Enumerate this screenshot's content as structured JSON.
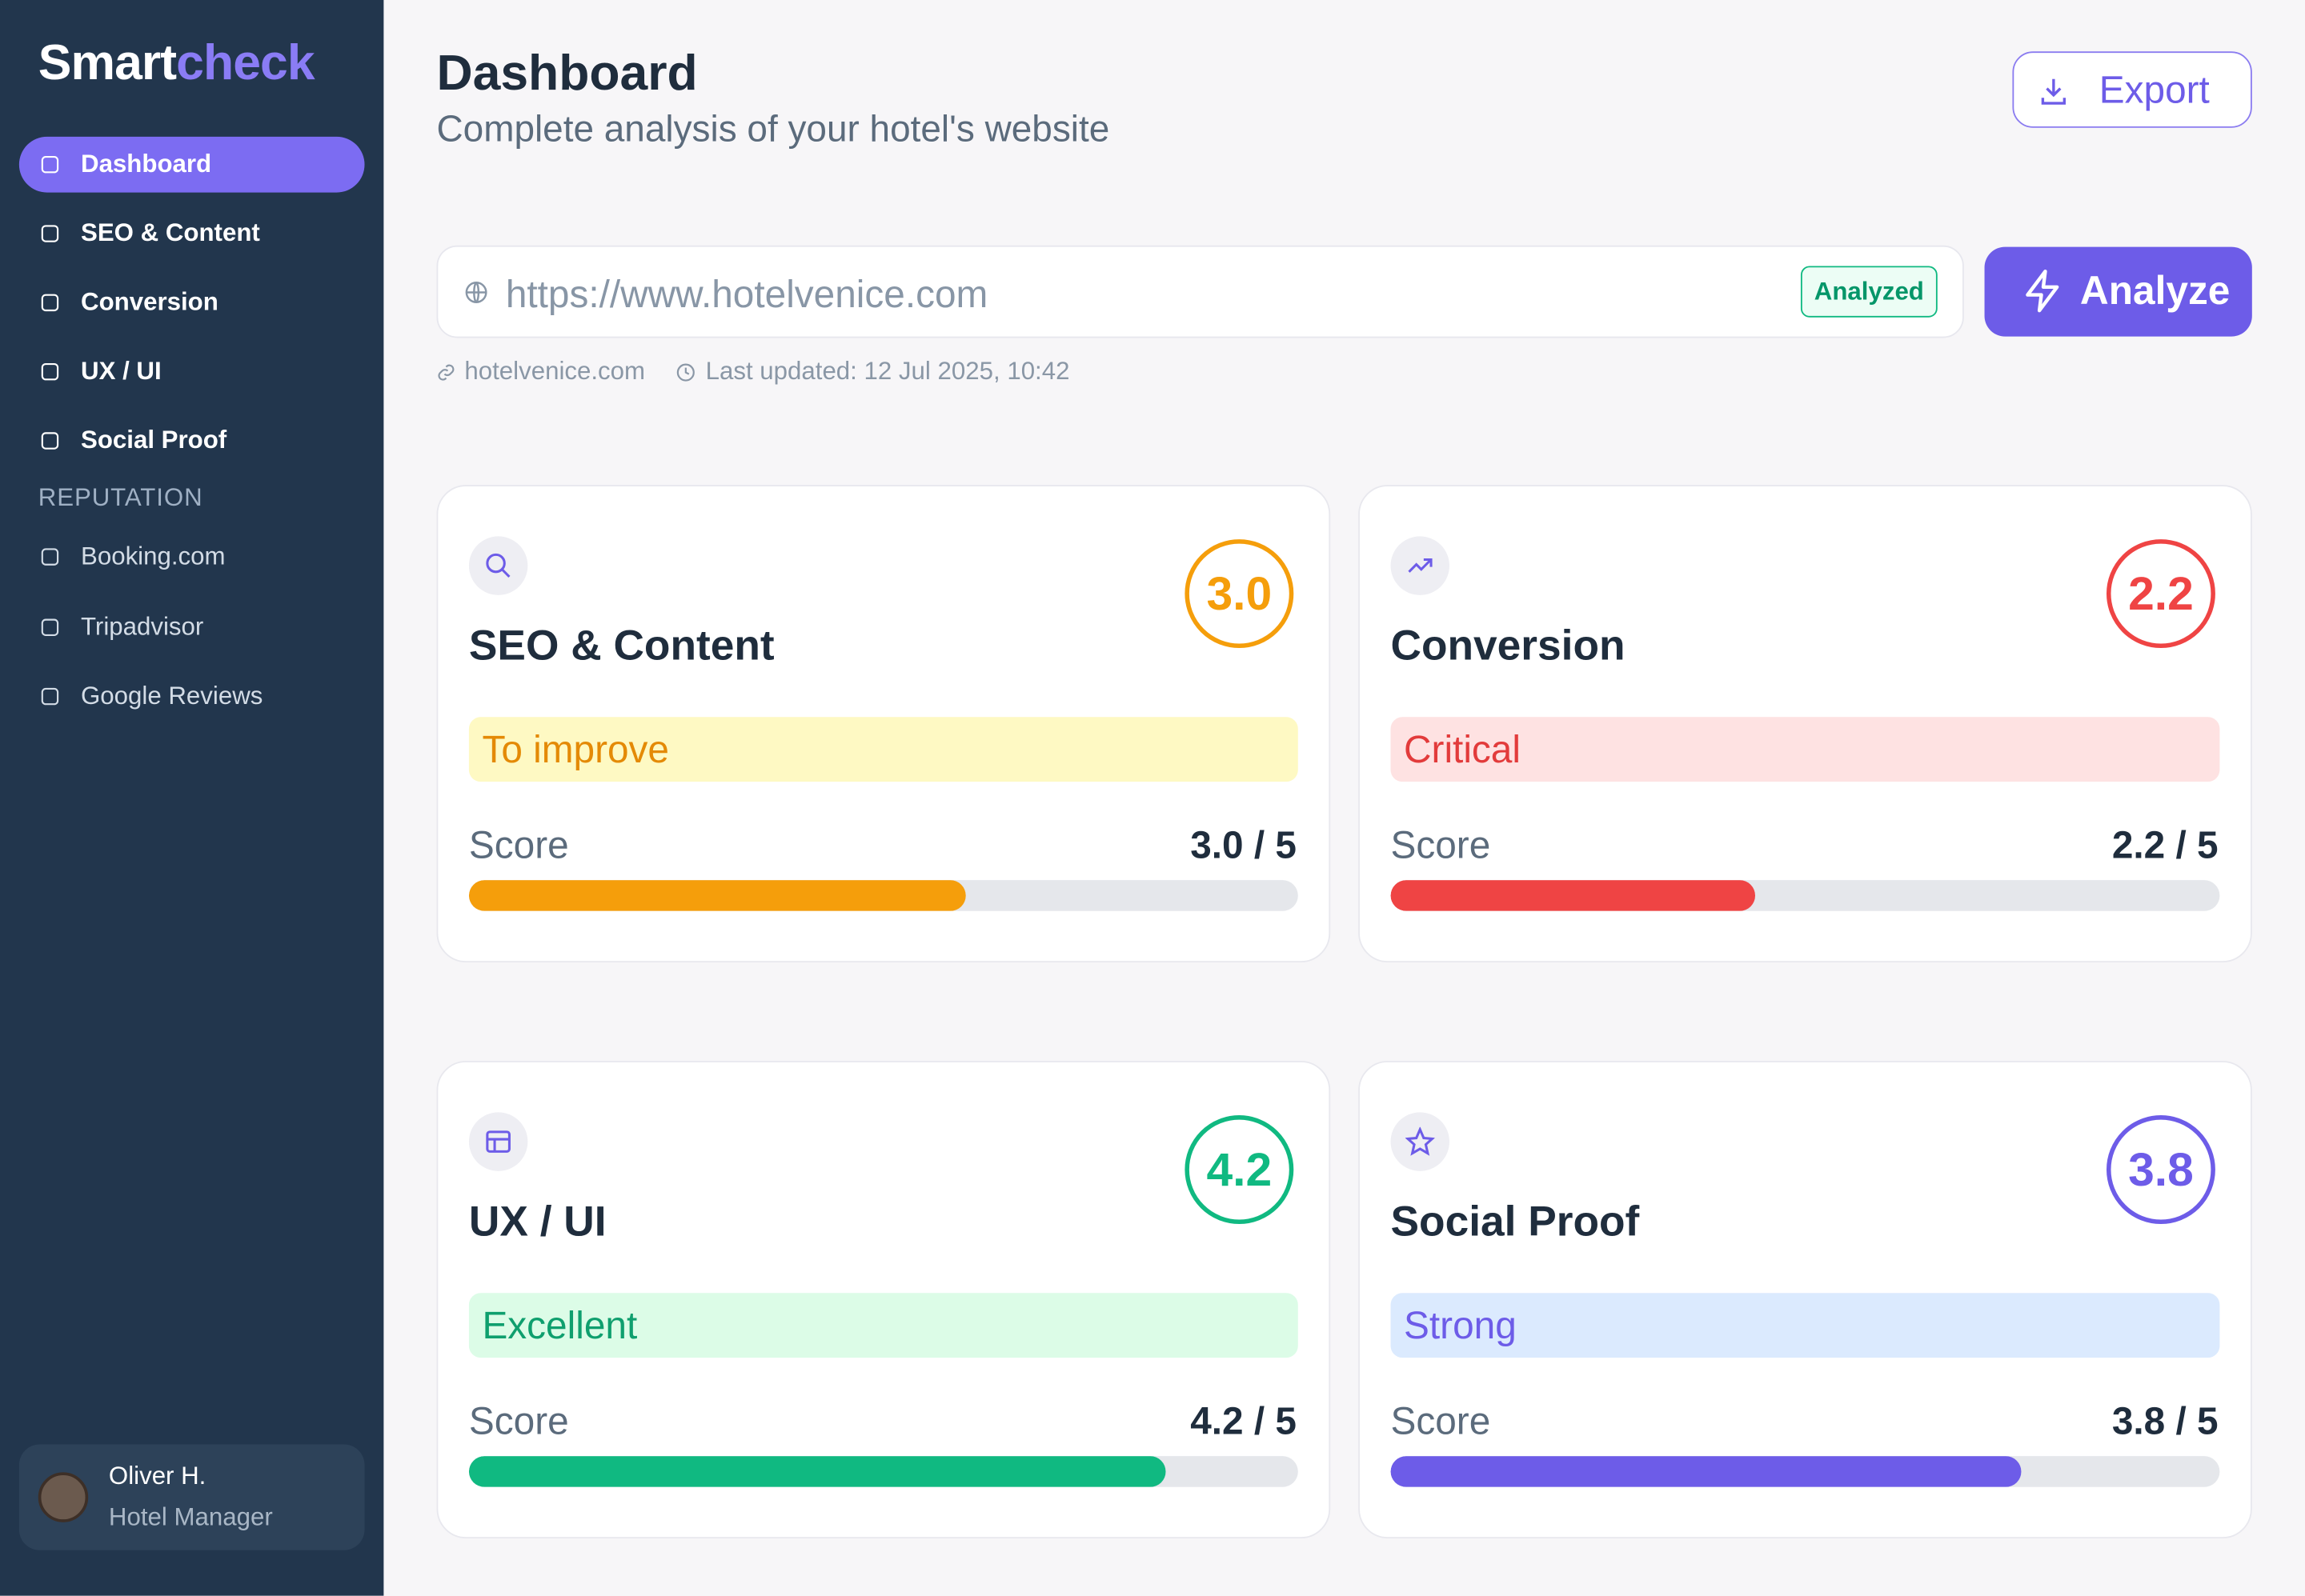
{
  "sidebar": {
    "brand": {
      "part1": "Smart",
      "part2": "check"
    },
    "nav": [
      "Dashboard",
      "SEO & Content",
      "Conversion",
      "UX / UI",
      "Social Proof"
    ],
    "section": "REPUTATION",
    "reputation": [
      "Booking.com",
      "Tripadvisor",
      "Google Reviews"
    ],
    "user": {
      "name": "Oliver H.",
      "role": "Hotel Manager"
    }
  },
  "header": {
    "title": "Dashboard",
    "subtitle": "Complete analysis of your hotel's website",
    "export": "Export"
  },
  "analysis": {
    "url": "https://www.hotelvenice.com",
    "badge": "Analyzed",
    "button": "Analyze",
    "domain": "hotelvenice.com",
    "last_updated": "Last updated: 12 Jul 2025, 10:42"
  },
  "max_score": 5,
  "cards": [
    {
      "title": "SEO & Content",
      "score": {
        "value": 3.0,
        "label": "3.0"
      },
      "status": "To improve",
      "score_label": "Score",
      "score_text": "3.0 / 5",
      "color": "#f59e0b",
      "status_bg": "#fef9c3",
      "status_color": "#e48a06"
    },
    {
      "title": "Conversion",
      "score": {
        "value": 2.2,
        "label": "2.2"
      },
      "status": "Critical",
      "score_label": "Score",
      "score_text": "2.2 / 5",
      "color": "#ef4444",
      "status_bg": "#fee2e2",
      "status_color": "#e23b3b"
    },
    {
      "title": "UX / UI",
      "score": {
        "value": 4.2,
        "label": "4.2"
      },
      "status": "Excellent",
      "score_label": "Score",
      "score_text": "4.2 / 5",
      "color": "#10b981",
      "status_bg": "#dcfce7",
      "status_color": "#0f9f6e"
    },
    {
      "title": "Social Proof",
      "score": {
        "value": 3.8,
        "label": "3.8"
      },
      "status": "Strong",
      "score_label": "Score",
      "score_text": "3.8 / 5",
      "color": "#6d5ce8",
      "status_bg": "#dbeafe",
      "status_color": "#6d5ce8"
    }
  ]
}
